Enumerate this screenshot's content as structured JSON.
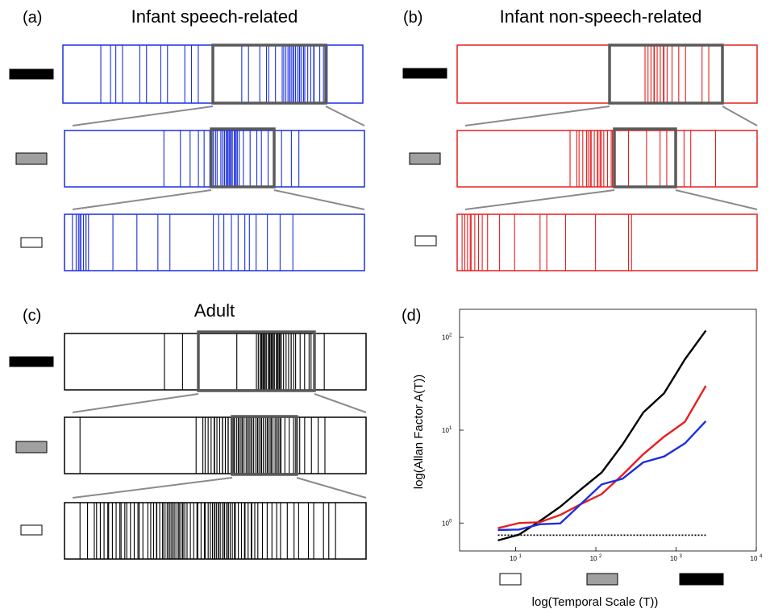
{
  "figure": {
    "panels": {
      "a": {
        "letter": "(a)",
        "title": "Infant speech-related",
        "color": "#1b2fe0"
      },
      "b": {
        "letter": "(b)",
        "title": "Infant non-speech-related",
        "color": "#e81e1e"
      },
      "c": {
        "letter": "(c)",
        "title": "Adult",
        "color": "#000000"
      },
      "d": {
        "letter": "(d)"
      }
    },
    "scale_colors": {
      "long": "#000000",
      "medium": "#a0a0a0",
      "short": "#ffffff"
    },
    "zoom_box_color": "#5a5a5a"
  },
  "chart_data": {
    "type": "line",
    "xlabel": "log(Temporal Scale (T))",
    "ylabel": "log(Allan Factor A(T))",
    "xscale": "log",
    "yscale": "log",
    "xlim": [
      2,
      10000
    ],
    "ylim": [
      0.5,
      200
    ],
    "grid": false,
    "x_ticks": [
      {
        "value": 10,
        "label": "10"
      },
      {
        "value": 100,
        "label": "10"
      },
      {
        "value": 1000,
        "label": "10"
      },
      {
        "value": 10000,
        "label": "10"
      }
    ],
    "x_tick_exponents": [
      "1",
      "2",
      "3",
      "4"
    ],
    "y_ticks": [
      {
        "value": 1,
        "label": "10"
      },
      {
        "value": 10,
        "label": "10"
      },
      {
        "value": 100,
        "label": "10"
      }
    ],
    "y_tick_exponents": [
      "0",
      "1",
      "2"
    ],
    "x": [
      6,
      11,
      20,
      36,
      65,
      118,
      215,
      390,
      710,
      1290,
      2350
    ],
    "series": [
      {
        "color": "#000000",
        "values": [
          0.65,
          0.75,
          1.05,
          1.5,
          2.3,
          3.5,
          7.0,
          15.5,
          25.0,
          58.0,
          118.0
        ]
      },
      {
        "color": "#e81e1e",
        "values": [
          0.88,
          1.0,
          1.02,
          1.22,
          1.6,
          2.05,
          3.3,
          5.5,
          8.5,
          12.3,
          30.0
        ]
      },
      {
        "color": "#1b2fe0",
        "values": [
          0.84,
          0.85,
          0.97,
          0.99,
          1.6,
          2.6,
          3.0,
          4.5,
          5.2,
          7.2,
          12.5
        ]
      },
      {
        "color": "#000000",
        "style": "dotted",
        "values": [
          0.74,
          0.74,
          0.74,
          0.74,
          0.74,
          0.74,
          0.74,
          0.74,
          0.74,
          0.74,
          0.74
        ]
      }
    ],
    "scale_legend": [
      "short",
      "medium",
      "long"
    ]
  }
}
